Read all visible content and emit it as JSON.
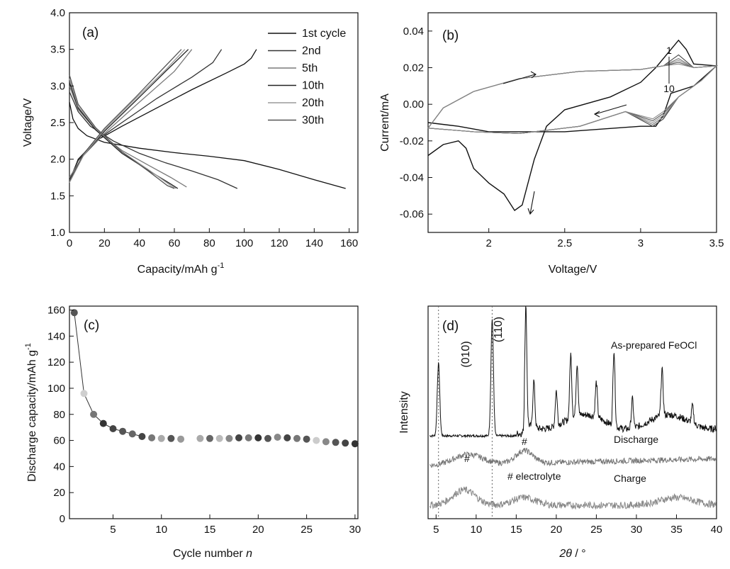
{
  "chart_data": [
    {
      "id": "a",
      "type": "line",
      "panel_label": "(a)",
      "xlabel": "Capacity/mAh g",
      "xlabel_sup": "-1",
      "ylabel": "Voltage/V",
      "xlim": [
        0,
        165
      ],
      "ylim": [
        1.0,
        4.0
      ],
      "xticks": [
        0,
        20,
        40,
        60,
        80,
        100,
        120,
        140,
        160
      ],
      "yticks": [
        1.0,
        1.5,
        2.0,
        2.5,
        3.0,
        3.5,
        4.0
      ],
      "grid": false,
      "legend_position": "top-right",
      "series": [
        {
          "name": "1st cycle",
          "color": "#111111",
          "discharge": [
            [
              0,
              2.78
            ],
            [
              2,
              2.55
            ],
            [
              5,
              2.42
            ],
            [
              10,
              2.32
            ],
            [
              20,
              2.23
            ],
            [
              40,
              2.15
            ],
            [
              60,
              2.09
            ],
            [
              80,
              2.04
            ],
            [
              100,
              1.98
            ],
            [
              120,
              1.86
            ],
            [
              140,
              1.72
            ],
            [
              158,
              1.6
            ]
          ],
          "charge": [
            [
              0,
              1.7
            ],
            [
              5,
              2.0
            ],
            [
              15,
              2.25
            ],
            [
              30,
              2.45
            ],
            [
              50,
              2.7
            ],
            [
              70,
              2.95
            ],
            [
              90,
              3.18
            ],
            [
              100,
              3.3
            ],
            [
              104,
              3.38
            ],
            [
              107,
              3.5
            ]
          ]
        },
        {
          "name": "2nd",
          "color": "#333333",
          "discharge": [
            [
              0,
              2.92
            ],
            [
              5,
              2.65
            ],
            [
              12,
              2.45
            ],
            [
              25,
              2.25
            ],
            [
              40,
              2.08
            ],
            [
              55,
              1.95
            ],
            [
              70,
              1.84
            ],
            [
              85,
              1.72
            ],
            [
              96,
              1.6
            ]
          ],
          "charge": [
            [
              0,
              1.72
            ],
            [
              5,
              1.98
            ],
            [
              15,
              2.25
            ],
            [
              30,
              2.5
            ],
            [
              50,
              2.83
            ],
            [
              70,
              3.12
            ],
            [
              82,
              3.32
            ],
            [
              87,
              3.5
            ]
          ]
        },
        {
          "name": "5th",
          "color": "#7a7a7a",
          "discharge": [
            [
              0,
              3.0
            ],
            [
              5,
              2.68
            ],
            [
              15,
              2.4
            ],
            [
              30,
              2.12
            ],
            [
              45,
              1.92
            ],
            [
              58,
              1.75
            ],
            [
              67,
              1.62
            ]
          ],
          "charge": [
            [
              0,
              1.75
            ],
            [
              8,
              2.05
            ],
            [
              20,
              2.35
            ],
            [
              40,
              2.78
            ],
            [
              60,
              3.2
            ],
            [
              70,
              3.5
            ]
          ]
        },
        {
          "name": "10th",
          "color": "#222222",
          "discharge": [
            [
              0,
              3.05
            ],
            [
              5,
              2.7
            ],
            [
              15,
              2.4
            ],
            [
              30,
              2.08
            ],
            [
              45,
              1.85
            ],
            [
              58,
              1.66
            ],
            [
              62,
              1.6
            ]
          ],
          "charge": [
            [
              0,
              1.7
            ],
            [
              8,
              2.05
            ],
            [
              20,
              2.38
            ],
            [
              38,
              2.8
            ],
            [
              55,
              3.2
            ],
            [
              68,
              3.5
            ]
          ]
        },
        {
          "name": "20th",
          "color": "#9a9a9a",
          "discharge": [
            [
              0,
              3.1
            ],
            [
              5,
              2.72
            ],
            [
              15,
              2.42
            ],
            [
              30,
              2.1
            ],
            [
              45,
              1.86
            ],
            [
              58,
              1.64
            ],
            [
              61,
              1.6
            ]
          ],
          "charge": [
            [
              0,
              1.68
            ],
            [
              8,
              2.05
            ],
            [
              20,
              2.4
            ],
            [
              38,
              2.83
            ],
            [
              55,
              3.22
            ],
            [
              66,
              3.5
            ]
          ]
        },
        {
          "name": "30th",
          "color": "#555555",
          "discharge": [
            [
              0,
              3.15
            ],
            [
              5,
              2.75
            ],
            [
              15,
              2.43
            ],
            [
              30,
              2.1
            ],
            [
              45,
              1.84
            ],
            [
              56,
              1.64
            ],
            [
              60,
              1.6
            ]
          ],
          "charge": [
            [
              0,
              1.7
            ],
            [
              8,
              2.07
            ],
            [
              20,
              2.42
            ],
            [
              38,
              2.85
            ],
            [
              54,
              3.25
            ],
            [
              64,
              3.5
            ]
          ]
        }
      ]
    },
    {
      "id": "b",
      "type": "line",
      "panel_label": "(b)",
      "xlabel": "Voltage/V",
      "ylabel": "Current/mA",
      "xlim": [
        1.6,
        3.5
      ],
      "ylim": [
        -0.07,
        0.05
      ],
      "xticks": [
        2.0,
        2.5,
        3.0,
        3.5
      ],
      "yticks": [
        0.04,
        0.02,
        0.0,
        -0.02,
        -0.04,
        -0.06
      ],
      "ytick_labels": [
        "0.04",
        "0.02",
        "0.00",
        "-0.02",
        "-0.04",
        "-0.06"
      ],
      "grid": false,
      "annotations": [
        "1",
        "10"
      ],
      "first_cycle": [
        [
          1.6,
          -0.028
        ],
        [
          1.7,
          -0.022
        ],
        [
          1.8,
          -0.02
        ],
        [
          1.85,
          -0.024
        ],
        [
          1.9,
          -0.035
        ],
        [
          2.0,
          -0.043
        ],
        [
          2.1,
          -0.049
        ],
        [
          2.17,
          -0.058
        ],
        [
          2.22,
          -0.055
        ],
        [
          2.3,
          -0.03
        ],
        [
          2.38,
          -0.012
        ],
        [
          2.5,
          -0.003
        ],
        [
          2.8,
          0.004
        ],
        [
          3.0,
          0.012
        ],
        [
          3.1,
          0.02
        ],
        [
          3.2,
          0.03
        ],
        [
          3.25,
          0.035
        ],
        [
          3.3,
          0.03
        ],
        [
          3.35,
          0.022
        ],
        [
          3.5,
          0.021
        ],
        [
          3.35,
          0.01
        ],
        [
          3.2,
          0.006
        ],
        [
          3.15,
          -0.006
        ],
        [
          3.1,
          -0.012
        ],
        [
          3.0,
          -0.012
        ],
        [
          2.5,
          -0.015
        ],
        [
          2.0,
          -0.015
        ],
        [
          1.8,
          -0.012
        ],
        [
          1.6,
          -0.01
        ]
      ],
      "later_cycles": [
        {
          "peak": 0.027,
          "trough": -0.012,
          "color": "#444444"
        },
        {
          "peak": 0.025,
          "trough": -0.011,
          "color": "#777777"
        },
        {
          "peak": 0.024,
          "trough": -0.01,
          "color": "#999999"
        },
        {
          "peak": 0.023,
          "trough": -0.009,
          "color": "#555555"
        },
        {
          "peak": 0.022,
          "trough": -0.008,
          "color": "#888888"
        }
      ]
    },
    {
      "id": "c",
      "type": "scatter",
      "panel_label": "(c)",
      "xlabel": "Cycle number ",
      "xlabel_italic": "n",
      "ylabel": "Discharge capacity/mAh g",
      "ylabel_sup": "-1",
      "xlim": [
        0.5,
        30.3
      ],
      "ylim": [
        0,
        163
      ],
      "xticks": [
        5,
        10,
        15,
        20,
        25,
        30
      ],
      "yticks": [
        0,
        20,
        40,
        60,
        80,
        100,
        120,
        140,
        160
      ],
      "grid": false,
      "x": [
        1,
        2,
        3,
        4,
        5,
        6,
        7,
        8,
        9,
        10,
        11,
        12,
        14,
        15,
        16,
        17,
        18,
        19,
        20,
        21,
        22,
        23,
        24,
        25,
        26,
        27,
        28,
        29,
        30
      ],
      "y": [
        158,
        96,
        80,
        73,
        69,
        67,
        65,
        63,
        62,
        61.5,
        61.5,
        61,
        61.5,
        61.5,
        61.5,
        61.5,
        62,
        62,
        62,
        61.5,
        62.5,
        62,
        61.5,
        61,
        60,
        59,
        58.5,
        58,
        57.5
      ],
      "colors": [
        "#555555",
        "#cfcfcf",
        "#777777",
        "#333333",
        "#444444",
        "#555555",
        "#666666",
        "#444444",
        "#777777",
        "#aaaaaa",
        "#555555",
        "#999999",
        "#aaaaaa",
        "#666666",
        "#bbbbbb",
        "#888888",
        "#444444",
        "#777777",
        "#333333",
        "#555555",
        "#888888",
        "#444444",
        "#777777",
        "#555555",
        "#cccccc",
        "#888888",
        "#555555",
        "#444444",
        "#333333"
      ]
    },
    {
      "id": "d",
      "type": "line",
      "panel_label": "(d)",
      "xlabel_italic": "2θ",
      "xlabel": " / °",
      "ylabel": "Intensity",
      "xlim": [
        4,
        40
      ],
      "xticks": [
        5,
        10,
        15,
        20,
        25,
        30,
        35,
        40
      ],
      "grid": false,
      "reference_lines": [
        5.3,
        12.0
      ],
      "reference_labels": [
        "(010)",
        "(110)"
      ],
      "series_labels": [
        "As-prepared FeOCl",
        "Discharge",
        "Charge"
      ],
      "hash_marks": [
        "#",
        "#"
      ],
      "electrolyte_note": "# electrolyte",
      "peaks": [
        {
          "pos": 5.3,
          "height": 0.62
        },
        {
          "pos": 12.0,
          "height": 1.0
        },
        {
          "pos": 16.2,
          "height": 1.0
        },
        {
          "pos": 17.2,
          "height": 0.4
        },
        {
          "pos": 20.0,
          "height": 0.3
        },
        {
          "pos": 21.8,
          "height": 0.55
        },
        {
          "pos": 22.6,
          "height": 0.45
        },
        {
          "pos": 25.0,
          "height": 0.3
        },
        {
          "pos": 27.2,
          "height": 0.65
        },
        {
          "pos": 29.5,
          "height": 0.25
        },
        {
          "pos": 33.2,
          "height": 0.4
        },
        {
          "pos": 37.0,
          "height": 0.15
        }
      ]
    }
  ]
}
